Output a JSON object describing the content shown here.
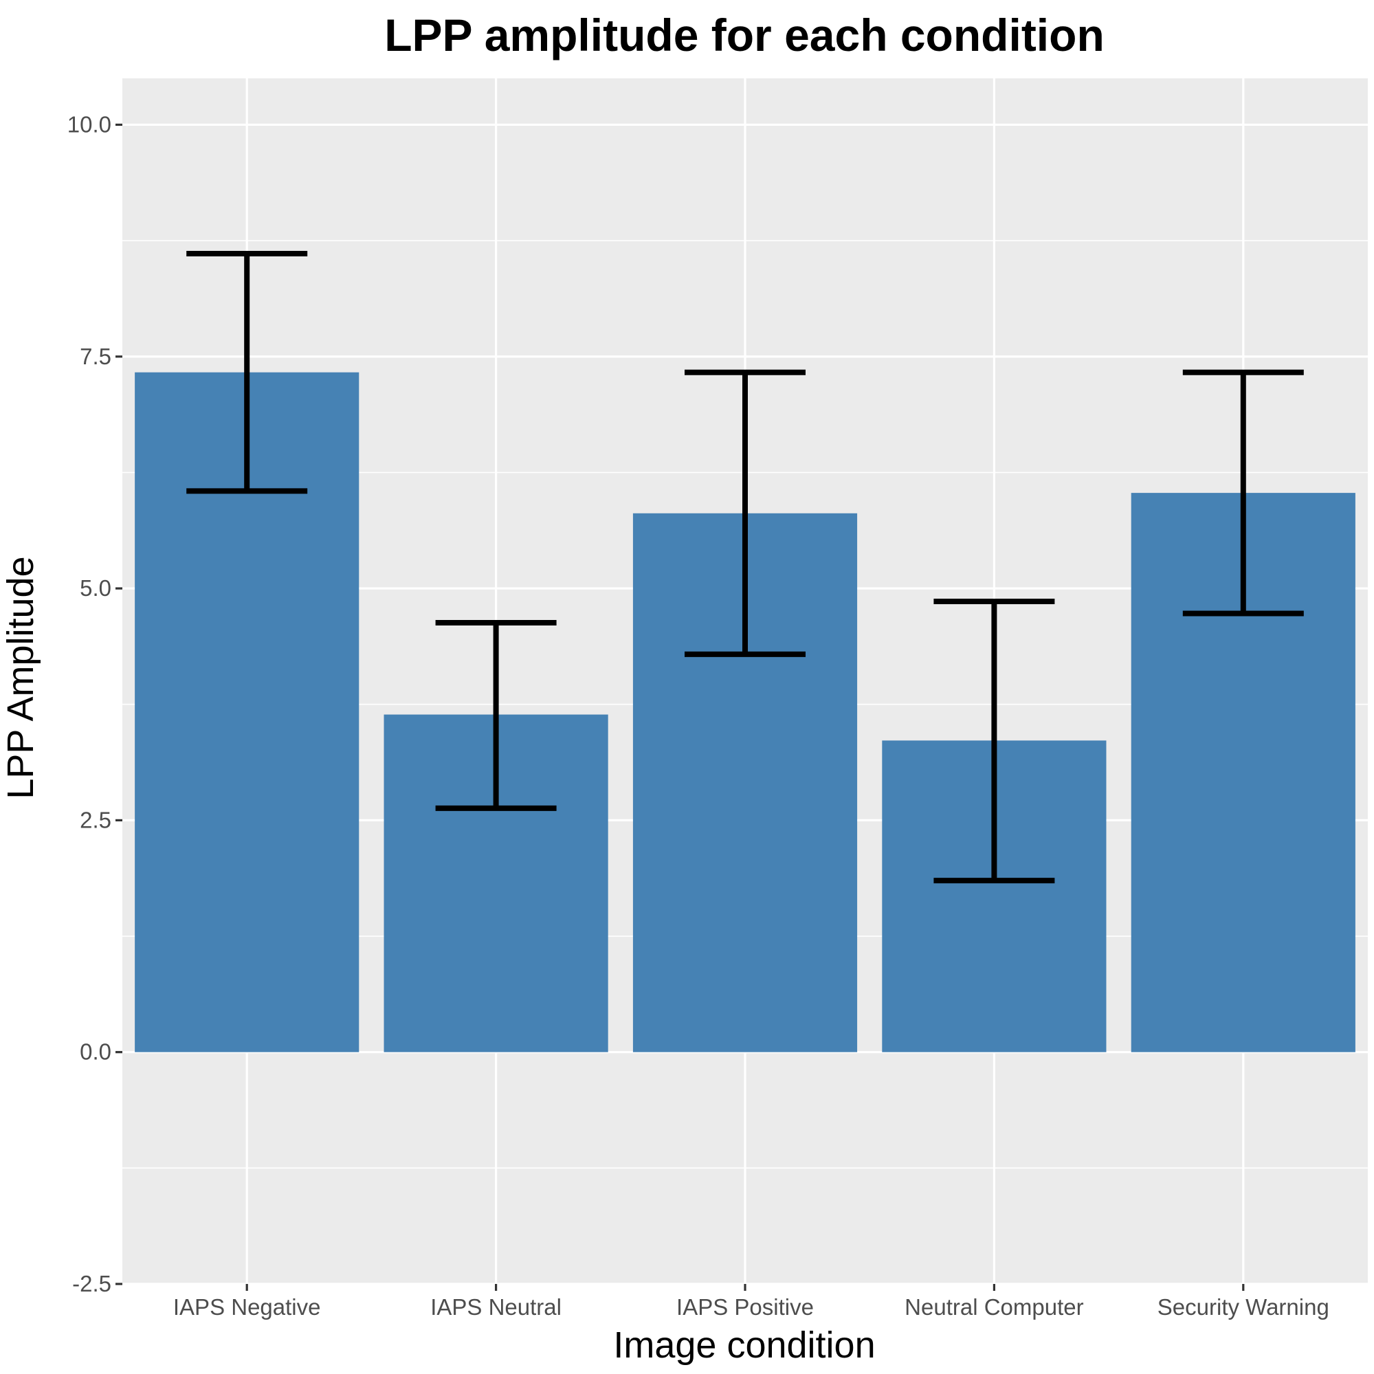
{
  "chart_data": {
    "type": "bar",
    "title": "LPP amplitude for each condition",
    "xlabel": "Image condition",
    "ylabel": "LPP Amplitude",
    "categories": [
      "IAPS Negative",
      "IAPS Neutral",
      "IAPS Positive",
      "Neutral Computer",
      "Security Warning"
    ],
    "values": [
      7.33,
      3.64,
      5.81,
      3.36,
      6.03
    ],
    "error_lower": [
      6.05,
      2.63,
      4.29,
      1.85,
      4.73
    ],
    "error_upper": [
      8.61,
      4.63,
      7.33,
      4.86,
      7.33
    ],
    "ylim": [
      -2.5,
      10.5
    ],
    "yticks": [
      -2.5,
      0,
      2.5,
      5,
      7.5,
      10
    ],
    "ytick_labels": [
      "-2.5",
      "0.0",
      "2.5",
      "5.0",
      "7.5",
      "10.0"
    ],
    "grid": true,
    "colors": {
      "bar": "#4682b4",
      "panel": "#ebebeb",
      "grid": "#ffffff",
      "errorbar": "#000000",
      "tick": "#333333"
    }
  }
}
